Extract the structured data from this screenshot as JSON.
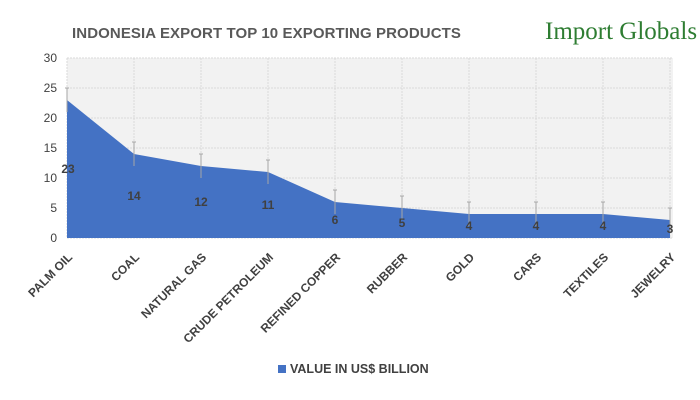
{
  "logo_text": "Import Globals",
  "chart_data": {
    "type": "area",
    "title": "INDONESIA EXPORT TOP 10 EXPORTING PRODUCTS",
    "categories": [
      "PALM OIL",
      "COAL",
      "NATURAL GAS",
      "CRUDE PETROLEUM",
      "REFINED COPPER",
      "RUBBER",
      "GOLD",
      "CARS",
      "TEXTILES",
      "JEWELRY"
    ],
    "series": [
      {
        "name": "VALUE IN US$ BILLION",
        "values": [
          23,
          14,
          12,
          11,
          6,
          5,
          4,
          4,
          4,
          3
        ],
        "color": "#4472c4"
      }
    ],
    "error_bar": 2,
    "ylim": [
      0,
      30
    ],
    "yticks": [
      0,
      5,
      10,
      15,
      20,
      25,
      30
    ],
    "grid": true,
    "data_labels": true,
    "legend": "bottom",
    "xlabel": "",
    "ylabel": ""
  }
}
